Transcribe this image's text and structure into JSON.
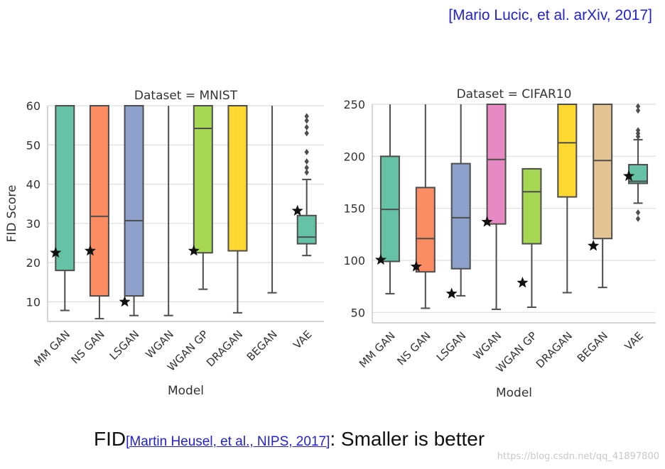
{
  "citation": "[Mario Lucic, et al. arXiv, 2017]",
  "caption": {
    "prefix": "FID",
    "reference": "[Martin Heusel, et al., NIPS, 2017]",
    "suffix": ": Smaller is better"
  },
  "watermark": "https://blog.csdn.net/qq_41897800",
  "chart_data": [
    {
      "type": "box",
      "title": "Dataset = MNIST",
      "xlabel": "Model",
      "ylabel": "FID Score",
      "ylim": [
        5,
        60
      ],
      "yticks": [
        10,
        20,
        30,
        40,
        50,
        60
      ],
      "categories": [
        "MM GAN",
        "NS GAN",
        "LSGAN",
        "WGAN",
        "WGAN GP",
        "DRAGAN",
        "BEGAN",
        "VAE"
      ],
      "colors": [
        "#66c2a5",
        "#fc8d62",
        "#8da0cb",
        "#e78ac3",
        "#a6d854",
        "#ffd92f",
        "#e5c494",
        "#66c2a5"
      ],
      "boxes": [
        {
          "q1": 18,
          "median": 60,
          "q3": 60,
          "whisker_low": 7.8,
          "whisker_high": 60,
          "best": 22.5,
          "outliers": []
        },
        {
          "q1": 11.5,
          "median": 31.8,
          "q3": 60,
          "whisker_low": 5.7,
          "whisker_high": 60,
          "best": 23,
          "outliers": []
        },
        {
          "q1": 11.5,
          "median": 30.7,
          "q3": 60,
          "whisker_low": 6.5,
          "whisker_high": 60,
          "best": 10,
          "outliers": []
        },
        {
          "q1": 60,
          "median": 60,
          "q3": 60,
          "whisker_low": 6.5,
          "whisker_high": 60,
          "best": null,
          "outliers": []
        },
        {
          "q1": 22.5,
          "median": 54.2,
          "q3": 60,
          "whisker_low": 13.2,
          "whisker_high": 60,
          "best": 23,
          "outliers": []
        },
        {
          "q1": 23,
          "median": 60,
          "q3": 60,
          "whisker_low": 7.2,
          "whisker_high": 60,
          "best": null,
          "outliers": []
        },
        {
          "q1": 60,
          "median": 60,
          "q3": 60,
          "whisker_low": 12.3,
          "whisker_high": 60,
          "best": null,
          "outliers": []
        },
        {
          "q1": 24.8,
          "median": 26.5,
          "q3": 32,
          "whisker_low": 21.8,
          "whisker_high": 41.2,
          "best": 33.2,
          "outliers": [
            43,
            44.2,
            45.8,
            48.2,
            53,
            54.5,
            56.2,
            57.3
          ]
        }
      ]
    },
    {
      "type": "box",
      "title": "Dataset = CIFAR10",
      "xlabel": "Model",
      "ylabel": "",
      "ylim": [
        40,
        250
      ],
      "yticks": [
        50,
        100,
        150,
        200,
        250
      ],
      "categories": [
        "MM GAN",
        "NS GAN",
        "LSGAN",
        "WGAN",
        "WGAN GP",
        "DRAGAN",
        "BEGAN",
        "VAE"
      ],
      "colors": [
        "#66c2a5",
        "#fc8d62",
        "#8da0cb",
        "#e78ac3",
        "#a6d854",
        "#ffd92f",
        "#e5c494",
        "#66c2a5"
      ],
      "boxes": [
        {
          "q1": 99,
          "median": 149,
          "q3": 200,
          "whisker_low": 68,
          "whisker_high": 250,
          "best": 100.5,
          "outliers": []
        },
        {
          "q1": 89,
          "median": 121,
          "q3": 170,
          "whisker_low": 54,
          "whisker_high": 250,
          "best": 94,
          "outliers": []
        },
        {
          "q1": 92,
          "median": 141,
          "q3": 193,
          "whisker_low": 66,
          "whisker_high": 250,
          "best": 68,
          "outliers": []
        },
        {
          "q1": 135,
          "median": 197,
          "q3": 250,
          "whisker_low": 53,
          "whisker_high": 250,
          "best": 137,
          "outliers": []
        },
        {
          "q1": 116,
          "median": 166,
          "q3": 188,
          "whisker_low": 55,
          "whisker_high": 188,
          "best": 78.5,
          "outliers": []
        },
        {
          "q1": 161,
          "median": 213,
          "q3": 250,
          "whisker_low": 69,
          "whisker_high": 250,
          "best": null,
          "outliers": []
        },
        {
          "q1": 121,
          "median": 196,
          "q3": 250,
          "whisker_low": 74,
          "whisker_high": 250,
          "best": 114,
          "outliers": []
        },
        {
          "q1": 174,
          "median": 176,
          "q3": 192,
          "whisker_low": 155,
          "whisker_high": 216,
          "best": 181,
          "outliers": [
            140,
            146,
            219,
            222,
            225,
            244,
            248
          ]
        }
      ]
    }
  ]
}
